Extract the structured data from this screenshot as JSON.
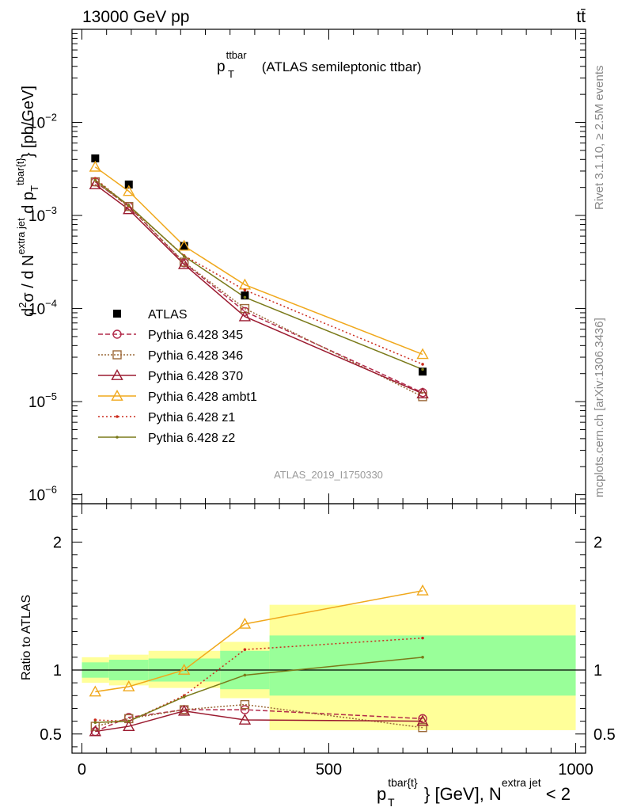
{
  "header": {
    "left": "13000 GeV pp",
    "right": "tt̄",
    "side_rivet": "Rivet 3.1.10, ≥ 2.5M events",
    "side_mcplots": "mcplots.cern.ch [arXiv:1306.3436]",
    "watermark": "ATLAS_2019_I1750330"
  },
  "title": {
    "p": "p",
    "sup": "ttbar",
    "sub": "T",
    "rest": " (ATLAS semileptonic ttbar)"
  },
  "ylabel_top": {
    "part1": "d",
    "sup1": "2",
    "part2": "σ  /  d N",
    "sup2": "extra jet",
    "part3": " d p",
    "sub3": "T",
    "sup3": "tbar{t}",
    "part4": "} [pb/GeV]"
  },
  "ylabel_bottom": "Ratio to ATLAS",
  "xlabel": {
    "p": "p",
    "sub": "T",
    "sup": "tbar{t}",
    "mid": "} [GeV], N",
    "sup2": "extra jet",
    "end": " < 2"
  },
  "chart_data": [
    {
      "type": "line",
      "panel": "main",
      "xlim": [
        -20,
        1020
      ],
      "ylim": [
        8e-07,
        0.1
      ],
      "yscale": "log",
      "xtick_labels": [],
      "ytick_labels": [
        {
          "v": 1e-06,
          "base": "10",
          "exp": "−6"
        },
        {
          "v": 1e-05,
          "base": "10",
          "exp": "−5"
        },
        {
          "v": 0.0001,
          "base": "10",
          "exp": "−4"
        },
        {
          "v": 0.001,
          "base": "10",
          "exp": "−3"
        },
        {
          "v": 0.01,
          "base": "10",
          "exp": "−2"
        }
      ],
      "x": [
        27,
        95,
        207,
        330,
        690
      ],
      "series": [
        {
          "name": "ATLAS",
          "marker": "square-filled",
          "color": "#000000",
          "dash": "none",
          "values": [
            0.0041,
            0.00215,
            0.00047,
            0.000138,
            2.1e-05
          ]
        },
        {
          "name": "Pythia 6.428 345",
          "marker": "circle-open",
          "color": "#b22a4a",
          "dash": "6,3",
          "values": [
            0.0023,
            0.00125,
            0.00031,
            9.3e-05,
            1.25e-05
          ]
        },
        {
          "name": "Pythia 6.428 346",
          "marker": "square-open",
          "color": "#9c6a3a",
          "dash": "2,2",
          "values": [
            0.0023,
            0.00125,
            0.000315,
            0.0001,
            1.13e-05
          ]
        },
        {
          "name": "Pythia 6.428 370",
          "marker": "triangle-open",
          "color": "#9b1b30",
          "dash": "none",
          "values": [
            0.00215,
            0.00116,
            0.000298,
            8.2e-05,
            1.22e-05
          ]
        },
        {
          "name": "Pythia 6.428 ambt1",
          "marker": "triangle-open",
          "color": "#f0a81c",
          "dash": "none",
          "values": [
            0.00332,
            0.00182,
            0.00047,
            0.00018,
            3.22e-05
          ]
        },
        {
          "name": "Pythia 6.428 z1",
          "marker": "dot",
          "color": "#cc2a1c",
          "dash": "2,3",
          "values": [
            0.0025,
            0.00125,
            0.00037,
            0.000158,
            2.52e-05
          ]
        },
        {
          "name": "Pythia 6.428 z2",
          "marker": "dot",
          "color": "#7a7a1a",
          "dash": "none",
          "values": [
            0.0024,
            0.00128,
            0.000365,
            0.000132,
            2.22e-05
          ]
        }
      ]
    },
    {
      "type": "line",
      "panel": "ratio",
      "xlim": [
        -20,
        1020
      ],
      "ylim": [
        0.35,
        2.3
      ],
      "xtick_labels": [
        {
          "v": 0,
          "label": "0"
        },
        {
          "v": 500,
          "label": "500"
        },
        {
          "v": 1000,
          "label": "1000"
        }
      ],
      "ytick_labels": [
        {
          "v": 0.5,
          "label": "0.5"
        },
        {
          "v": 1,
          "label": "1"
        },
        {
          "v": 2,
          "label": "2"
        }
      ],
      "uncertainty_bands": [
        {
          "x0": 0,
          "x1": 55,
          "outer": [
            0.9,
            1.1
          ],
          "inner": [
            0.94,
            1.06
          ]
        },
        {
          "x0": 55,
          "x1": 135,
          "outer": [
            0.88,
            1.12
          ],
          "inner": [
            0.92,
            1.08
          ]
        },
        {
          "x0": 135,
          "x1": 280,
          "outer": [
            0.86,
            1.15
          ],
          "inner": [
            0.91,
            1.09
          ]
        },
        {
          "x0": 280,
          "x1": 380,
          "outer": [
            0.78,
            1.22
          ],
          "inner": [
            0.85,
            1.15
          ]
        },
        {
          "x0": 380,
          "x1": 1000,
          "outer": [
            0.53,
            1.51
          ],
          "inner": [
            0.8,
            1.27
          ]
        }
      ],
      "x": [
        27,
        95,
        207,
        330,
        690
      ],
      "series": [
        {
          "name": "Pythia 6.428 345",
          "marker": "circle-open",
          "color": "#b22a4a",
          "dash": "6,3",
          "values": [
            0.52,
            0.63,
            0.69,
            0.69,
            0.62
          ]
        },
        {
          "name": "Pythia 6.428 346",
          "marker": "square-open",
          "color": "#9c6a3a",
          "dash": "2,2",
          "values": [
            0.56,
            0.62,
            0.69,
            0.73,
            0.55
          ]
        },
        {
          "name": "Pythia 6.428 370",
          "marker": "triangle-open",
          "color": "#9b1b30",
          "dash": "none",
          "values": [
            0.52,
            0.56,
            0.68,
            0.61,
            0.6
          ]
        },
        {
          "name": "Pythia 6.428 ambt1",
          "marker": "triangle-open",
          "color": "#f0a81c",
          "dash": "none",
          "values": [
            0.83,
            0.87,
            1.0,
            1.36,
            1.62
          ]
        },
        {
          "name": "Pythia 6.428 z1",
          "marker": "dot",
          "color": "#cc2a1c",
          "dash": "2,3",
          "values": [
            0.61,
            0.6,
            0.8,
            1.16,
            1.25
          ]
        },
        {
          "name": "Pythia 6.428 z2",
          "marker": "dot",
          "color": "#7a7a1a",
          "dash": "none",
          "values": [
            0.59,
            0.6,
            0.79,
            0.96,
            1.1
          ]
        }
      ]
    }
  ]
}
